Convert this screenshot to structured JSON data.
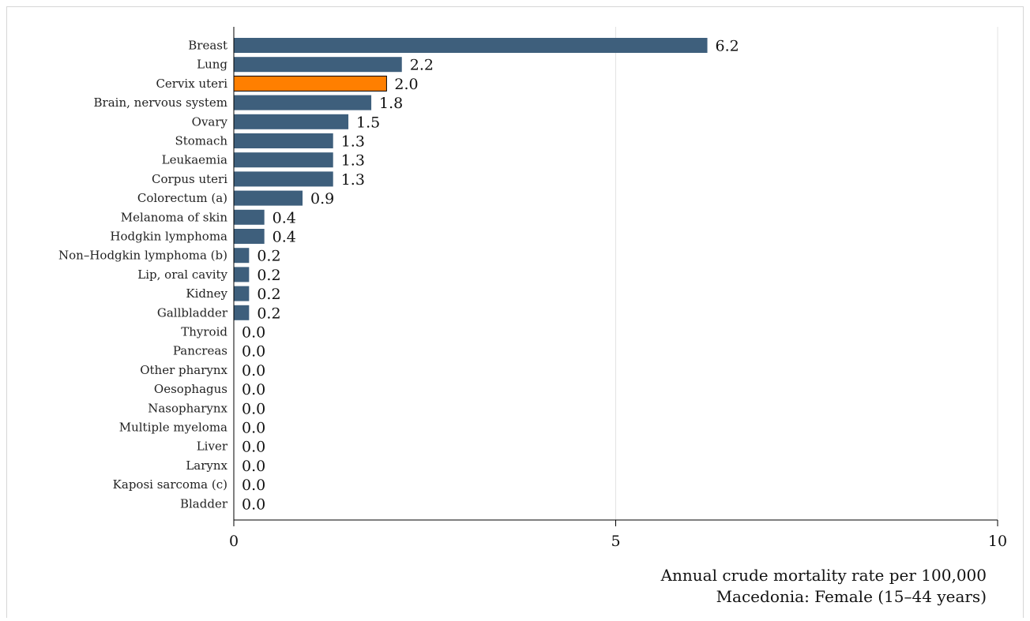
{
  "chart_data": {
    "type": "bar",
    "orientation": "horizontal",
    "title": "",
    "xlabel": "Annual crude mortality rate per 100,000",
    "subtitle": "Macedonia: Female (15–44 years)",
    "xlim": [
      0,
      10
    ],
    "xticks": [
      0,
      5,
      10
    ],
    "grid": true,
    "legend": "none",
    "categories": [
      "Breast",
      "Lung",
      "Cervix uteri",
      "Brain, nervous system",
      "Ovary",
      "Stomach",
      "Leukaemia",
      "Corpus uteri",
      "Colorectum (a)",
      "Melanoma of skin",
      "Hodgkin lymphoma",
      "Non–Hodgkin lymphoma (b)",
      "Lip, oral cavity",
      "Kidney",
      "Gallbladder",
      "Thyroid",
      "Pancreas",
      "Other pharynx",
      "Oesophagus",
      "Nasopharynx",
      "Multiple myeloma",
      "Liver",
      "Larynx",
      "Kaposi sarcoma (c)",
      "Bladder"
    ],
    "values": [
      6.2,
      2.2,
      2.0,
      1.8,
      1.5,
      1.3,
      1.3,
      1.3,
      0.9,
      0.4,
      0.4,
      0.2,
      0.2,
      0.2,
      0.2,
      0.0,
      0.0,
      0.0,
      0.0,
      0.0,
      0.0,
      0.0,
      0.0,
      0.0,
      0.0
    ],
    "value_labels": [
      "6.2",
      "2.2",
      "2.0",
      "1.8",
      "1.5",
      "1.3",
      "1.3",
      "1.3",
      "0.9",
      "0.4",
      "0.4",
      "0.2",
      "0.2",
      "0.2",
      "0.2",
      "0.0",
      "0.0",
      "0.0",
      "0.0",
      "0.0",
      "0.0",
      "0.0",
      "0.0",
      "0.0",
      "0.0"
    ],
    "highlight_category": "Cervix uteri",
    "colors": {
      "bar": "#3e5f7c",
      "highlight": "#ff7f00",
      "grid": "#e3e3e3",
      "axis": "#000000"
    }
  }
}
